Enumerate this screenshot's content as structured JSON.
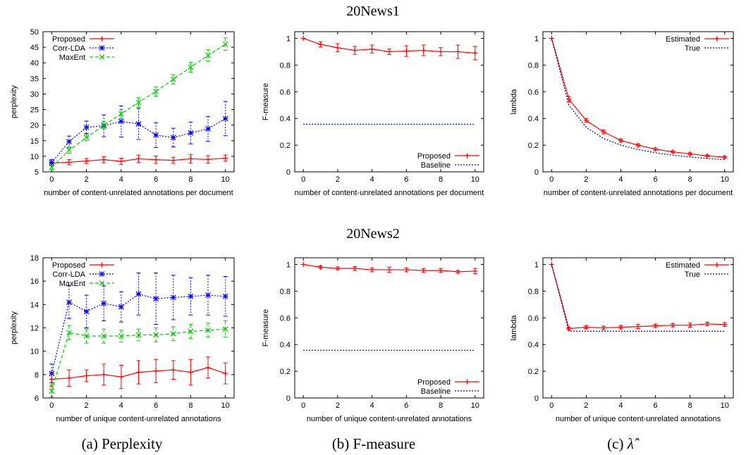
{
  "row_titles": [
    "20News1",
    "20News2"
  ],
  "captions": [
    "(a) Perplexity",
    "(b) F-measure",
    "(c) "
  ],
  "caption_symbol": "λ̂",
  "colors": {
    "proposed": "#ff0000",
    "corr_lda": "#0000ff",
    "maxent": "#00cc00",
    "true_line": "#000080",
    "frame": "#000000"
  },
  "chart_data": [
    {
      "type": "line",
      "group": "20News1",
      "xlabel": "number of content-unrelated annotations per document",
      "ylabel": "perplexity",
      "xlim": [
        -0.5,
        10.5
      ],
      "ylim": [
        5,
        50
      ],
      "xticks": [
        0,
        2,
        4,
        6,
        8,
        10
      ],
      "yticks": [
        5,
        10,
        15,
        20,
        25,
        30,
        35,
        40,
        45,
        50
      ],
      "ytick_labels": [
        "5",
        "10",
        "15",
        "20",
        "25",
        "30",
        "35",
        "40",
        "45",
        "50"
      ],
      "legend_position": "top-left",
      "x": [
        0,
        1,
        2,
        3,
        4,
        5,
        6,
        7,
        8,
        9,
        10
      ],
      "series": [
        {
          "name": "Proposed",
          "color": "#ff0000",
          "dash": "solid",
          "marker": "plus",
          "values": [
            7.8,
            8.1,
            8.5,
            8.9,
            8.4,
            9.2,
            8.9,
            8.7,
            9.2,
            9.0,
            9.4
          ],
          "errors": [
            0.6,
            0.8,
            0.8,
            1.0,
            1.0,
            1.2,
            1.2,
            1.0,
            1.4,
            1.2,
            1.0
          ]
        },
        {
          "name": "Corr-LDA",
          "color": "#0000ff",
          "dash": "dotted",
          "marker": "star",
          "values": [
            8.0,
            14.7,
            19.3,
            19.8,
            21.2,
            20.4,
            16.8,
            16.0,
            17.5,
            18.8,
            22.1
          ],
          "errors": [
            1.0,
            1.8,
            2.0,
            3.5,
            5.0,
            5.0,
            4.0,
            3.0,
            3.5,
            4.0,
            5.5
          ]
        },
        {
          "name": "MaxEnt",
          "color": "#00cc00",
          "dash": "dashed",
          "marker": "cross",
          "values": [
            6.5,
            12.0,
            16.0,
            20.0,
            23.6,
            27.3,
            30.8,
            34.7,
            38.6,
            42.4,
            46.0
          ],
          "errors": [
            0.8,
            1.0,
            1.0,
            1.2,
            1.4,
            1.5,
            1.5,
            1.5,
            1.6,
            1.8,
            2.0
          ]
        }
      ]
    },
    {
      "type": "line",
      "group": "20News1",
      "xlabel": "number of content-unrelated annotations per document",
      "ylabel": "F-measure",
      "xlim": [
        -0.5,
        10.5
      ],
      "ylim": [
        0,
        1.05
      ],
      "xticks": [
        0,
        2,
        4,
        6,
        8,
        10
      ],
      "yticks": [
        0,
        0.2,
        0.4,
        0.6,
        0.8,
        1
      ],
      "ytick_labels": [
        "0",
        "0.2",
        "0.4",
        "0.6",
        "0.8",
        "1"
      ],
      "legend_position": "bottom-right",
      "x": [
        0,
        1,
        2,
        3,
        4,
        5,
        6,
        7,
        8,
        9,
        10
      ],
      "series": [
        {
          "name": "Proposed",
          "color": "#ff0000",
          "dash": "solid",
          "marker": "plus",
          "values": [
            1.0,
            0.955,
            0.93,
            0.91,
            0.92,
            0.9,
            0.905,
            0.91,
            0.9,
            0.9,
            0.89
          ],
          "errors": [
            0.0,
            0.02,
            0.03,
            0.03,
            0.03,
            0.02,
            0.04,
            0.04,
            0.03,
            0.05,
            0.05
          ]
        },
        {
          "name": "Baseline",
          "color": "#0000ff",
          "dash": "dotted",
          "marker": "none",
          "values": [
            0.357,
            0.357,
            0.357,
            0.357,
            0.357,
            0.357,
            0.357,
            0.357,
            0.357,
            0.357,
            0.357
          ]
        }
      ]
    },
    {
      "type": "line",
      "group": "20News1",
      "xlabel": "number of content-unrelated annotations per document",
      "ylabel": "lambda",
      "xlim": [
        -0.5,
        10.5
      ],
      "ylim": [
        0,
        1.05
      ],
      "xticks": [
        0,
        2,
        4,
        6,
        8,
        10
      ],
      "yticks": [
        0,
        0.2,
        0.4,
        0.6,
        0.8,
        1
      ],
      "ytick_labels": [
        "0",
        "0.2",
        "0.4",
        "0.6",
        "0.8",
        "1"
      ],
      "legend_position": "top-right",
      "x": [
        0,
        1,
        2,
        3,
        4,
        5,
        6,
        7,
        8,
        9,
        10
      ],
      "series": [
        {
          "name": "Estimated",
          "color": "#ff0000",
          "dash": "solid",
          "marker": "plus",
          "values": [
            1.0,
            0.545,
            0.385,
            0.3,
            0.235,
            0.2,
            0.17,
            0.15,
            0.135,
            0.12,
            0.11
          ],
          "errors": [
            0.0,
            0.02,
            0.015,
            0.015,
            0.01,
            0.01,
            0.01,
            0.008,
            0.008,
            0.008,
            0.008
          ]
        },
        {
          "name": "True",
          "color": "#000080",
          "dash": "dotted",
          "marker": "none",
          "values": [
            1.0,
            0.5,
            0.333,
            0.25,
            0.2,
            0.167,
            0.143,
            0.125,
            0.111,
            0.1,
            0.091
          ]
        }
      ]
    },
    {
      "type": "line",
      "group": "20News2",
      "xlabel": "number of unique content-unrelated annotations",
      "ylabel": "perplexity",
      "xlim": [
        -0.5,
        10.5
      ],
      "ylim": [
        6,
        18
      ],
      "xticks": [
        0,
        2,
        4,
        6,
        8,
        10
      ],
      "yticks": [
        6,
        8,
        10,
        12,
        14,
        16,
        18
      ],
      "ytick_labels": [
        "6",
        "8",
        "10",
        "12",
        "14",
        "16",
        "18"
      ],
      "legend_position": "top-left",
      "x": [
        0,
        1,
        2,
        3,
        4,
        5,
        6,
        7,
        8,
        9,
        10
      ],
      "series": [
        {
          "name": "Proposed",
          "color": "#ff0000",
          "dash": "solid",
          "marker": "plus",
          "values": [
            7.6,
            7.7,
            7.9,
            8.0,
            7.8,
            8.2,
            8.3,
            8.4,
            8.2,
            8.6,
            8.1
          ],
          "errors": [
            0.6,
            0.7,
            0.5,
            0.9,
            1.0,
            1.0,
            1.0,
            0.8,
            1.1,
            0.9,
            0.9
          ]
        },
        {
          "name": "Corr-LDA",
          "color": "#0000ff",
          "dash": "dotted",
          "marker": "star",
          "values": [
            8.1,
            14.2,
            13.4,
            14.1,
            13.8,
            14.9,
            14.5,
            14.6,
            14.7,
            14.8,
            14.7
          ],
          "errors": [
            0.8,
            1.4,
            1.4,
            1.5,
            1.3,
            1.8,
            2.2,
            1.9,
            1.6,
            1.7,
            1.7
          ]
        },
        {
          "name": "MaxEnt",
          "color": "#00cc00",
          "dash": "dashed",
          "marker": "cross",
          "values": [
            6.6,
            11.6,
            11.3,
            11.3,
            11.3,
            11.4,
            11.4,
            11.5,
            11.7,
            11.8,
            11.9
          ],
          "errors": [
            0.5,
            0.6,
            0.6,
            0.6,
            0.5,
            0.5,
            0.6,
            0.6,
            0.6,
            0.6,
            0.7
          ]
        }
      ]
    },
    {
      "type": "line",
      "group": "20News2",
      "xlabel": "number of unique content-unrelated annotations",
      "ylabel": "F-measure",
      "xlim": [
        -0.5,
        10.5
      ],
      "ylim": [
        0,
        1.05
      ],
      "xticks": [
        0,
        2,
        4,
        6,
        8,
        10
      ],
      "yticks": [
        0,
        0.2,
        0.4,
        0.6,
        0.8,
        1
      ],
      "ytick_labels": [
        "0",
        "0.2",
        "0.4",
        "0.6",
        "0.8",
        "1"
      ],
      "legend_position": "bottom-right",
      "x": [
        0,
        1,
        2,
        3,
        4,
        5,
        6,
        7,
        8,
        9,
        10
      ],
      "series": [
        {
          "name": "Proposed",
          "color": "#ff0000",
          "dash": "solid",
          "marker": "plus",
          "values": [
            1.0,
            0.98,
            0.97,
            0.97,
            0.96,
            0.96,
            0.96,
            0.955,
            0.955,
            0.945,
            0.95
          ],
          "errors": [
            0.0,
            0.01,
            0.01,
            0.015,
            0.015,
            0.02,
            0.015,
            0.015,
            0.015,
            0.01,
            0.02
          ]
        },
        {
          "name": "Baseline",
          "color": "#0000ff",
          "dash": "dotted",
          "marker": "none",
          "values": [
            0.357,
            0.357,
            0.357,
            0.357,
            0.357,
            0.357,
            0.357,
            0.357,
            0.357,
            0.357,
            0.357
          ]
        }
      ]
    },
    {
      "type": "line",
      "group": "20News2",
      "xlabel": "number of unique content-unrelated annotations",
      "ylabel": "lambda",
      "xlim": [
        -0.5,
        10.5
      ],
      "ylim": [
        0,
        1.05
      ],
      "xticks": [
        0,
        2,
        4,
        6,
        8,
        10
      ],
      "yticks": [
        0,
        0.2,
        0.4,
        0.6,
        0.8,
        1
      ],
      "ytick_labels": [
        "0",
        "0.2",
        "0.4",
        "0.6",
        "0.8",
        "1"
      ],
      "legend_position": "top-right",
      "x": [
        0,
        1,
        2,
        3,
        4,
        5,
        6,
        7,
        8,
        9,
        10
      ],
      "series": [
        {
          "name": "Estimated",
          "color": "#ff0000",
          "dash": "solid",
          "marker": "plus",
          "values": [
            1.0,
            0.52,
            0.53,
            0.525,
            0.53,
            0.535,
            0.54,
            0.545,
            0.545,
            0.555,
            0.55
          ],
          "errors": [
            0.0,
            0.01,
            0.01,
            0.012,
            0.012,
            0.015,
            0.012,
            0.012,
            0.015,
            0.012,
            0.015
          ]
        },
        {
          "name": "True",
          "color": "#000080",
          "dash": "dotted",
          "marker": "none",
          "values": [
            1.0,
            0.5,
            0.5,
            0.5,
            0.5,
            0.5,
            0.5,
            0.5,
            0.5,
            0.5,
            0.5
          ]
        }
      ]
    }
  ]
}
